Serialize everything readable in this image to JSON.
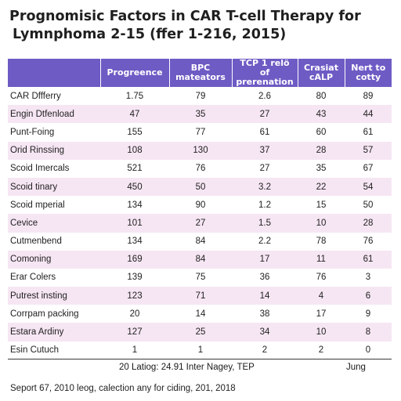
{
  "title": {
    "line1": "Prognomisic Factors in CAR T-cell Therapy for",
    "line2": "Lymnphoma 2-15 (ffer 1-216, 2015)"
  },
  "table": {
    "headers": [
      "",
      "Progreence",
      "BPC mateators",
      "TCP 1 relö of prerenation",
      "Crasiat cALP",
      "Nert to cotty"
    ],
    "rows": [
      [
        "CAR Dffferry",
        "1.75",
        "79",
        "2.6",
        "80",
        "89"
      ],
      [
        "Engin Dtfenload",
        "47",
        "35",
        "27",
        "43",
        "44"
      ],
      [
        "Punt-Foing",
        "155",
        "77",
        "61",
        "60",
        "61"
      ],
      [
        "Orid Rinssing",
        "108",
        "130",
        "37",
        "28",
        "57"
      ],
      [
        "Scoid Imercals",
        "521",
        "76",
        "27",
        "35",
        "67"
      ],
      [
        "Scoid tinary",
        "450",
        "50",
        "3.2",
        "22",
        "54"
      ],
      [
        "Scoid mperial",
        "134",
        "90",
        "1.2",
        "15",
        "50"
      ],
      [
        "Cevice",
        "101",
        "27",
        "1.5",
        "10",
        "28"
      ],
      [
        "Cutmenbend",
        "134",
        "84",
        "2.2",
        "78",
        "76"
      ],
      [
        "Comoning",
        "169",
        "84",
        "17",
        "11",
        "61"
      ],
      [
        "Erar Colers",
        "139",
        "75",
        "36",
        "76",
        "3"
      ],
      [
        "Putrest insting",
        "123",
        "71",
        "14",
        "4",
        "6"
      ],
      [
        "Corrpam packing",
        "20",
        "14",
        "38",
        "17",
        "9"
      ],
      [
        "Estara Ardiny",
        "127",
        "25",
        "34",
        "10",
        "8"
      ],
      [
        "Esin Cutuch",
        "1",
        "1",
        "2",
        "2",
        "0"
      ]
    ],
    "footer_left": "20 Latiog: 24.91 Inter Nagey, TEP",
    "footer_right": "Jung"
  },
  "source_note": "Seport 67, 2010 leog, calection any for ciding, 201, 2018",
  "colors": {
    "header_bg": "#6e5bc4",
    "stripe": "#f6e6f3"
  }
}
